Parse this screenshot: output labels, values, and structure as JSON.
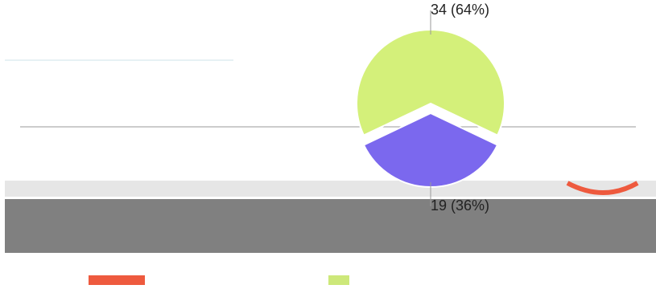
{
  "chart_data": {
    "type": "pie",
    "values": [
      34,
      19
    ],
    "value_labels": [
      "34 (64%)",
      "19 (36%)"
    ],
    "colors": [
      "#d4f07a",
      "#7b68ee"
    ]
  }
}
